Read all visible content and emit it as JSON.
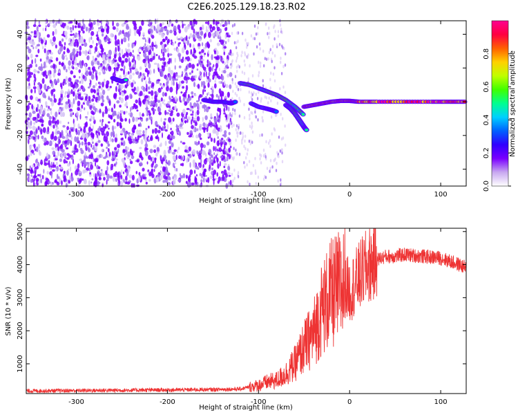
{
  "title": "C2E6.2025.129.18.23.R02",
  "chart_data": [
    {
      "type": "heatmap",
      "xlabel": "Height of straight line (km)",
      "ylabel": "Frequency (Hz)",
      "xlim": [
        -355,
        128
      ],
      "ylim": [
        -50,
        48
      ],
      "x_ticks": [
        "-300",
        "-200",
        "-100",
        "0",
        "100"
      ],
      "y_ticks": [
        "40",
        "20",
        "0",
        "-20",
        "-40"
      ],
      "grid": false,
      "colorbar": {
        "label": "Normalized spectral amplitude",
        "range": [
          0,
          1
        ],
        "ticks": [
          "0.0",
          "0.2",
          "0.4",
          "0.6",
          "0.8"
        ],
        "colors": [
          "#ffffff",
          "#c8a8f0",
          "#7a00ff",
          "#3000ff",
          "#0060ff",
          "#00d0ff",
          "#00ff90",
          "#40ff00",
          "#c0ff00",
          "#ffd000",
          "#ff6000",
          "#ff0040",
          "#ff0090"
        ]
      },
      "traces": [
        {
          "x": [
            -120,
            -110,
            -100,
            -90,
            -80,
            -70,
            -60,
            -50
          ],
          "y": [
            11,
            10,
            8,
            6,
            4,
            1,
            -3,
            -8
          ],
          "level": 0.5
        },
        {
          "x": [
            -70,
            -65,
            -60,
            -55,
            -50,
            -47
          ],
          "y": [
            -2,
            -4,
            -7,
            -11,
            -15,
            -17
          ],
          "level": 0.5
        },
        {
          "x": [
            -108,
            -100,
            -92,
            -85,
            -80
          ],
          "y": [
            -1,
            -3,
            -4,
            -5,
            -6
          ],
          "level": 0.35
        },
        {
          "x": [
            -50,
            -40,
            -30,
            -20,
            -10,
            0,
            10,
            30,
            60,
            90,
            110,
            128
          ],
          "y": [
            -3,
            -2,
            -1,
            0,
            0.5,
            0.5,
            0,
            0,
            0,
            0,
            0,
            0
          ],
          "level": 0.9
        },
        {
          "x": [
            -260,
            -255,
            -250,
            -245
          ],
          "y": [
            14,
            13,
            12,
            13
          ],
          "level": 0.45
        },
        {
          "x": [
            -160,
            -150,
            -140,
            -130,
            -125
          ],
          "y": [
            1,
            0,
            0,
            -1,
            0
          ],
          "level": 0.3
        }
      ]
    },
    {
      "type": "line",
      "xlabel": "Height of straight line (km)",
      "ylabel": "SNR (10 * v/v)",
      "xlim": [
        -355,
        128
      ],
      "ylim": [
        100,
        5100
      ],
      "x_ticks": [
        "-300",
        "-200",
        "-100",
        "0",
        "100"
      ],
      "y_ticks": [
        "5000",
        "4000",
        "3000",
        "2000",
        "1000"
      ],
      "grid": false,
      "color": "#ee3333",
      "x": [
        -355,
        -300,
        -250,
        -200,
        -150,
        -120,
        -100,
        -90,
        -80,
        -70,
        -60,
        -50,
        -40,
        -35,
        -30,
        -25,
        -20,
        -15,
        -10,
        -5,
        0,
        5,
        10,
        15,
        20,
        30,
        40,
        50,
        60,
        80,
        100,
        110,
        120,
        128
      ],
      "y": [
        180,
        190,
        200,
        210,
        220,
        240,
        350,
        450,
        500,
        700,
        1000,
        1500,
        1900,
        2300,
        2700,
        2900,
        3100,
        3200,
        3300,
        3400,
        3200,
        3400,
        3600,
        3800,
        3950,
        4150,
        4250,
        4250,
        4300,
        4250,
        4200,
        4100,
        4000,
        3900
      ]
    }
  ]
}
